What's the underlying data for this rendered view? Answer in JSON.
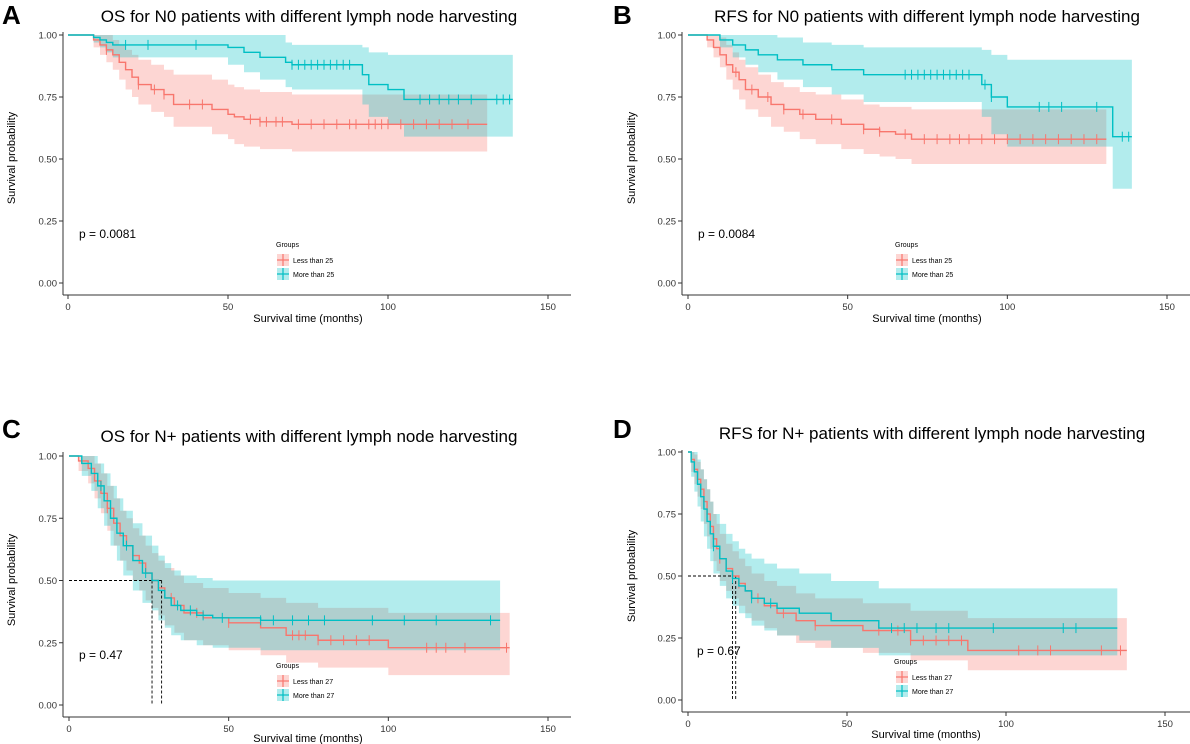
{
  "colors": {
    "less": "#F8766D",
    "more": "#00BFC4",
    "less_ci": "#F8766D",
    "more_ci": "#00BFC4",
    "axis": "#333333",
    "text": "#000000"
  },
  "chart_data": [
    {
      "type": "line",
      "panel_label": "A",
      "title": "OS for N0 patients with different lymph node harvesting",
      "xlabel": "Survival time (months)",
      "ylabel": "Survival probability",
      "xlim": [
        0,
        150
      ],
      "ylim": [
        0,
        1
      ],
      "x_ticks": [
        0,
        50,
        100,
        150
      ],
      "x_tick_labels": [
        "0",
        "50",
        "100",
        "150"
      ],
      "y_ticks": [
        0,
        0.25,
        0.5,
        0.75,
        1
      ],
      "y_tick_labels": [
        "0.00",
        "0.25",
        "0.50",
        "0.75",
        "1.00"
      ],
      "pvalue": "p = 0.0081",
      "legend_title": "Groups",
      "legend_position": "bottom-center",
      "series": [
        {
          "name": "Less than 25",
          "color_key": "less",
          "x": [
            0,
            8,
            10,
            12,
            14,
            16,
            18,
            20,
            22,
            26,
            30,
            33,
            45,
            50,
            52,
            55,
            60,
            70,
            131
          ],
          "y": [
            1.0,
            0.98,
            0.96,
            0.94,
            0.92,
            0.89,
            0.86,
            0.83,
            0.8,
            0.78,
            0.76,
            0.72,
            0.7,
            0.68,
            0.67,
            0.66,
            0.65,
            0.64,
            0.64
          ],
          "ci_lower": [
            1.0,
            0.95,
            0.92,
            0.89,
            0.86,
            0.82,
            0.78,
            0.75,
            0.72,
            0.69,
            0.67,
            0.63,
            0.6,
            0.58,
            0.56,
            0.55,
            0.54,
            0.53,
            0.53
          ],
          "ci_upper": [
            1.0,
            1.0,
            1.0,
            1.0,
            0.98,
            0.96,
            0.94,
            0.92,
            0.9,
            0.88,
            0.86,
            0.84,
            0.82,
            0.8,
            0.79,
            0.78,
            0.77,
            0.76,
            0.76
          ],
          "censor_x": [
            12,
            22,
            27,
            30,
            38,
            42,
            57,
            60,
            62,
            65,
            67,
            72,
            76,
            80,
            84,
            88,
            90,
            94,
            96,
            98,
            100,
            104,
            108,
            112,
            116,
            120,
            125
          ]
        },
        {
          "name": "More than 25",
          "color_key": "more",
          "x": [
            0,
            8,
            10,
            12,
            14,
            50,
            55,
            60,
            68,
            70,
            92,
            94,
            100,
            105,
            139
          ],
          "y": [
            1.0,
            0.99,
            0.98,
            0.97,
            0.96,
            0.95,
            0.93,
            0.91,
            0.89,
            0.88,
            0.84,
            0.8,
            0.78,
            0.74,
            0.74
          ],
          "ci_lower": [
            1.0,
            0.97,
            0.95,
            0.93,
            0.91,
            0.88,
            0.85,
            0.82,
            0.79,
            0.78,
            0.72,
            0.67,
            0.64,
            0.59,
            0.59
          ],
          "ci_upper": [
            1.0,
            1.0,
            1.0,
            1.0,
            1.0,
            1.0,
            1.0,
            1.0,
            0.97,
            0.96,
            0.95,
            0.93,
            0.92,
            0.92,
            0.92
          ],
          "censor_x": [
            18,
            25,
            40,
            70,
            72,
            74,
            76,
            78,
            80,
            82,
            84,
            86,
            88,
            110,
            113,
            116,
            119,
            122,
            126,
            134,
            136,
            138
          ]
        }
      ],
      "median_lines": []
    },
    {
      "type": "line",
      "panel_label": "B",
      "title": "RFS for N0 patients with different lymph node harvesting",
      "xlabel": "Survival time (months)",
      "ylabel": "Survival probability",
      "xlim": [
        0,
        150
      ],
      "ylim": [
        0,
        1
      ],
      "x_ticks": [
        0,
        50,
        100,
        150
      ],
      "x_tick_labels": [
        "0",
        "50",
        "100",
        "150"
      ],
      "y_ticks": [
        0,
        0.25,
        0.5,
        0.75,
        1
      ],
      "y_tick_labels": [
        "0.00",
        "0.25",
        "0.50",
        "0.75",
        "1.00"
      ],
      "pvalue": "p = 0.0084",
      "legend_title": "Groups",
      "legend_position": "bottom-center",
      "series": [
        {
          "name": "Less than 25",
          "color_key": "less",
          "x": [
            0,
            6,
            8,
            10,
            12,
            14,
            16,
            18,
            22,
            26,
            30,
            35,
            40,
            48,
            55,
            60,
            65,
            70,
            131
          ],
          "y": [
            1.0,
            0.98,
            0.95,
            0.92,
            0.88,
            0.85,
            0.82,
            0.78,
            0.75,
            0.72,
            0.7,
            0.68,
            0.66,
            0.64,
            0.62,
            0.61,
            0.6,
            0.58,
            0.58
          ],
          "ci_lower": [
            1.0,
            0.95,
            0.91,
            0.87,
            0.82,
            0.78,
            0.74,
            0.7,
            0.67,
            0.63,
            0.61,
            0.58,
            0.56,
            0.54,
            0.52,
            0.51,
            0.5,
            0.48,
            0.48
          ],
          "ci_upper": [
            1.0,
            1.0,
            1.0,
            0.99,
            0.96,
            0.93,
            0.9,
            0.87,
            0.84,
            0.81,
            0.79,
            0.77,
            0.76,
            0.74,
            0.72,
            0.71,
            0.71,
            0.7,
            0.7
          ],
          "censor_x": [
            15,
            20,
            25,
            30,
            36,
            45,
            55,
            60,
            68,
            74,
            78,
            82,
            85,
            88,
            92,
            96,
            100,
            104,
            108,
            112,
            116,
            120,
            124,
            128
          ]
        },
        {
          "name": "More than 25",
          "color_key": "more",
          "x": [
            0,
            10,
            14,
            18,
            22,
            28,
            36,
            45,
            55,
            62,
            92,
            95,
            100,
            133,
            139
          ],
          "y": [
            1.0,
            0.98,
            0.96,
            0.94,
            0.92,
            0.9,
            0.88,
            0.86,
            0.84,
            0.84,
            0.8,
            0.75,
            0.71,
            0.59,
            0.59
          ],
          "ci_lower": [
            1.0,
            0.95,
            0.91,
            0.88,
            0.85,
            0.82,
            0.79,
            0.76,
            0.73,
            0.73,
            0.67,
            0.6,
            0.55,
            0.38,
            0.38
          ],
          "ci_upper": [
            1.0,
            1.0,
            1.0,
            1.0,
            1.0,
            0.99,
            0.97,
            0.96,
            0.95,
            0.95,
            0.94,
            0.92,
            0.9,
            0.9,
            0.9
          ],
          "censor_x": [
            68,
            70,
            72,
            74,
            76,
            78,
            80,
            82,
            84,
            86,
            88,
            93,
            95,
            110,
            113,
            117,
            128,
            136,
            138
          ]
        }
      ],
      "median_lines": []
    },
    {
      "type": "line",
      "panel_label": "C",
      "title": "OS for N+ patients with different lymph node harvesting",
      "xlabel": "Survival time (months)",
      "ylabel": "Survival probability",
      "xlim": [
        0,
        150
      ],
      "ylim": [
        0,
        1
      ],
      "x_ticks": [
        0,
        50,
        100,
        150
      ],
      "x_tick_labels": [
        "0",
        "50",
        "100",
        "150"
      ],
      "y_ticks": [
        0,
        0.25,
        0.5,
        0.75,
        1
      ],
      "y_tick_labels": [
        "0.00",
        "0.25",
        "0.50",
        "0.75",
        "1.00"
      ],
      "pvalue": "p = 0.47",
      "legend_title": "Groups",
      "legend_position": "bottom-center",
      "series": [
        {
          "name": "Less than 27",
          "color_key": "less",
          "x": [
            0,
            3,
            6,
            8,
            10,
            12,
            14,
            16,
            18,
            20,
            22,
            24,
            26,
            28,
            30,
            33,
            36,
            42,
            50,
            60,
            68,
            78,
            100,
            138
          ],
          "y": [
            1.0,
            0.98,
            0.95,
            0.9,
            0.85,
            0.79,
            0.73,
            0.68,
            0.64,
            0.6,
            0.57,
            0.53,
            0.5,
            0.47,
            0.43,
            0.4,
            0.37,
            0.35,
            0.33,
            0.31,
            0.28,
            0.26,
            0.23,
            0.23
          ],
          "ci_lower": [
            1.0,
            0.94,
            0.89,
            0.83,
            0.77,
            0.7,
            0.64,
            0.58,
            0.54,
            0.5,
            0.46,
            0.42,
            0.39,
            0.36,
            0.32,
            0.29,
            0.26,
            0.24,
            0.22,
            0.2,
            0.17,
            0.15,
            0.12,
            0.12
          ],
          "ci_upper": [
            1.0,
            1.0,
            1.0,
            0.97,
            0.93,
            0.88,
            0.83,
            0.78,
            0.75,
            0.71,
            0.68,
            0.64,
            0.61,
            0.58,
            0.55,
            0.52,
            0.49,
            0.47,
            0.45,
            0.43,
            0.41,
            0.39,
            0.37,
            0.37
          ],
          "censor_x": [
            12,
            20,
            32,
            40,
            50,
            70,
            72,
            74,
            78,
            82,
            86,
            90,
            94,
            112,
            115,
            118,
            124,
            137
          ]
        },
        {
          "name": "More than 27",
          "color_key": "more",
          "x": [
            0,
            4,
            7,
            9,
            11,
            13,
            15,
            17,
            20,
            23,
            26,
            28,
            30,
            32,
            35,
            40,
            45,
            60,
            135
          ],
          "y": [
            1.0,
            0.97,
            0.93,
            0.88,
            0.82,
            0.75,
            0.69,
            0.64,
            0.58,
            0.53,
            0.5,
            0.46,
            0.43,
            0.4,
            0.38,
            0.36,
            0.35,
            0.34,
            0.34
          ],
          "ci_lower": [
            1.0,
            0.92,
            0.86,
            0.79,
            0.72,
            0.64,
            0.58,
            0.52,
            0.46,
            0.41,
            0.38,
            0.34,
            0.31,
            0.28,
            0.26,
            0.24,
            0.23,
            0.22,
            0.22
          ],
          "ci_upper": [
            1.0,
            1.0,
            1.0,
            0.97,
            0.93,
            0.88,
            0.83,
            0.78,
            0.73,
            0.68,
            0.64,
            0.6,
            0.57,
            0.54,
            0.52,
            0.51,
            0.5,
            0.5,
            0.5
          ],
          "censor_x": [
            10,
            18,
            24,
            34,
            38,
            42,
            48,
            60,
            64,
            70,
            75,
            80,
            95,
            105,
            115,
            132
          ]
        }
      ],
      "median_lines": [
        {
          "x": 26,
          "y": 0.5
        },
        {
          "x": 29,
          "y": 0.5
        }
      ]
    },
    {
      "type": "line",
      "panel_label": "D",
      "title": "RFS for N+ patients with different lymph node harvesting",
      "xlabel": "Survival time (months)",
      "ylabel": "Survival probability",
      "xlim": [
        0,
        150
      ],
      "ylim": [
        0,
        1
      ],
      "x_ticks": [
        0,
        50,
        100,
        150
      ],
      "x_tick_labels": [
        "0",
        "50",
        "100",
        "150"
      ],
      "y_ticks": [
        0,
        0.25,
        0.5,
        0.75,
        1
      ],
      "y_tick_labels": [
        "0.00",
        "0.25",
        "0.50",
        "0.75",
        "1.00"
      ],
      "pvalue": "p = 0.67",
      "legend_title": "Groups",
      "legend_position": "bottom-center",
      "series": [
        {
          "name": "Less than 27",
          "color_key": "less",
          "x": [
            0,
            1,
            2,
            3,
            4,
            5,
            6,
            7,
            8,
            9,
            10,
            12,
            14,
            16,
            18,
            20,
            24,
            28,
            34,
            40,
            55,
            70,
            88,
            138
          ],
          "y": [
            1.0,
            0.97,
            0.93,
            0.89,
            0.85,
            0.8,
            0.75,
            0.7,
            0.65,
            0.61,
            0.57,
            0.53,
            0.5,
            0.47,
            0.44,
            0.41,
            0.38,
            0.35,
            0.32,
            0.3,
            0.28,
            0.24,
            0.2,
            0.2
          ],
          "ci_lower": [
            1.0,
            0.92,
            0.87,
            0.82,
            0.77,
            0.71,
            0.66,
            0.61,
            0.56,
            0.52,
            0.48,
            0.44,
            0.41,
            0.38,
            0.35,
            0.32,
            0.29,
            0.26,
            0.23,
            0.21,
            0.19,
            0.16,
            0.12,
            0.12
          ],
          "ci_upper": [
            1.0,
            1.0,
            0.99,
            0.96,
            0.93,
            0.89,
            0.85,
            0.8,
            0.75,
            0.71,
            0.67,
            0.63,
            0.6,
            0.57,
            0.54,
            0.51,
            0.48,
            0.46,
            0.43,
            0.41,
            0.39,
            0.36,
            0.33,
            0.33
          ],
          "censor_x": [
            5,
            10,
            16,
            22,
            30,
            40,
            60,
            66,
            70,
            74,
            78,
            82,
            86,
            104,
            110,
            114,
            130,
            136
          ]
        },
        {
          "name": "More than 27",
          "color_key": "more",
          "x": [
            0,
            1,
            2,
            3,
            4,
            5,
            6,
            7,
            8,
            10,
            12,
            14,
            16,
            18,
            20,
            24,
            28,
            35,
            45,
            60,
            135
          ],
          "y": [
            1.0,
            0.96,
            0.92,
            0.87,
            0.82,
            0.77,
            0.72,
            0.67,
            0.62,
            0.57,
            0.52,
            0.49,
            0.46,
            0.44,
            0.41,
            0.39,
            0.37,
            0.35,
            0.32,
            0.29,
            0.29
          ],
          "ci_lower": [
            1.0,
            0.9,
            0.84,
            0.78,
            0.72,
            0.66,
            0.61,
            0.56,
            0.51,
            0.46,
            0.41,
            0.38,
            0.35,
            0.33,
            0.3,
            0.28,
            0.26,
            0.24,
            0.21,
            0.18,
            0.18
          ],
          "ci_upper": [
            1.0,
            1.0,
            1.0,
            0.97,
            0.93,
            0.89,
            0.85,
            0.8,
            0.75,
            0.71,
            0.67,
            0.64,
            0.61,
            0.59,
            0.57,
            0.55,
            0.53,
            0.51,
            0.48,
            0.45,
            0.45
          ],
          "censor_x": [
            8,
            14,
            20,
            26,
            64,
            68,
            72,
            78,
            82,
            96,
            118,
            122
          ]
        }
      ],
      "median_lines": [
        {
          "x": 14,
          "y": 0.5
        },
        {
          "x": 15,
          "y": 0.5
        }
      ]
    }
  ]
}
